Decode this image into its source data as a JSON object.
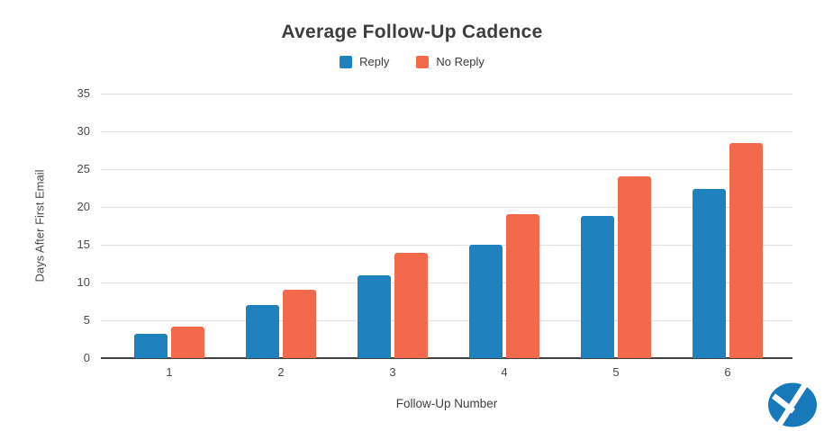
{
  "title": "Average Follow-Up Cadence",
  "chart_data": {
    "type": "bar",
    "title": "Average Follow-Up Cadence",
    "categories": [
      "1",
      "2",
      "3",
      "4",
      "5",
      "6"
    ],
    "series": [
      {
        "name": "Reply",
        "color": "#1F81BE",
        "values": [
          3.2,
          7,
          11,
          15,
          18.8,
          22.4
        ]
      },
      {
        "name": "No Reply",
        "color": "#F3694C",
        "values": [
          4.2,
          9,
          13.9,
          19,
          24,
          28.5
        ]
      }
    ],
    "xlabel": "Follow-Up Number",
    "ylabel": "Days After First Email",
    "ylim": [
      0,
      35
    ],
    "ytick_step": 5,
    "yticks": [
      0,
      5,
      10,
      15,
      20,
      25,
      30,
      35
    ],
    "grid": true,
    "legend_position": "top"
  },
  "colors": {
    "background": "#ffffff",
    "title_text": "#3d3d3d",
    "axis_text": "#4a4a4a",
    "gridline": "#e0e0e0",
    "axis_line": "#424242",
    "bar_reply": "#1F81BE",
    "bar_no_reply": "#F3694C",
    "logo_blue": "#1879BA"
  },
  "logo": {
    "name": "yesware-logo",
    "color": "#1879BA"
  }
}
